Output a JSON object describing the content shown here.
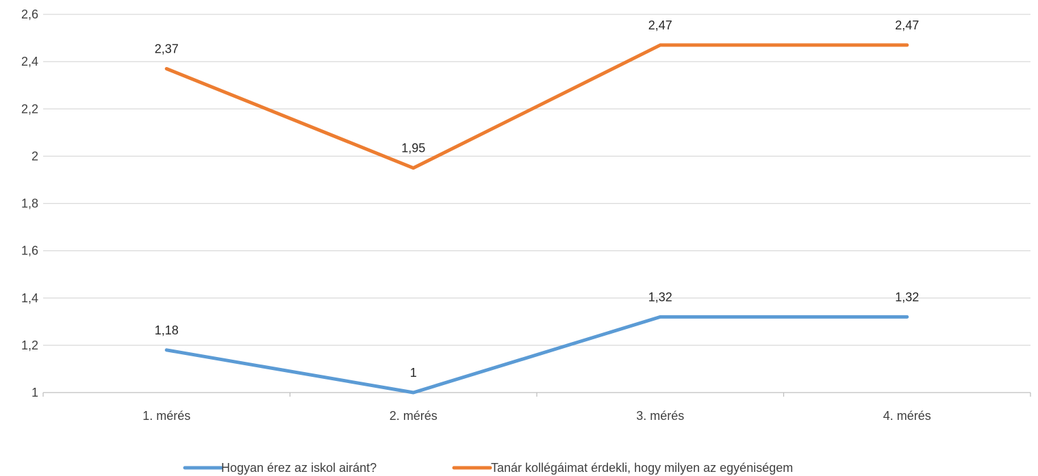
{
  "chart_data": {
    "type": "line",
    "categories": [
      "1. mérés",
      "2. mérés",
      "3. mérés",
      "4. mérés"
    ],
    "ylim": [
      1,
      2.6
    ],
    "yticks": [
      1,
      1.2,
      1.4,
      1.6,
      1.8,
      2,
      2.2,
      2.4,
      2.6
    ],
    "ytick_labels": [
      "1",
      "1,2",
      "1,4",
      "1,6",
      "1,8",
      "2",
      "2,2",
      "2,4",
      "2,6"
    ],
    "grid": true,
    "legend_position": "bottom",
    "series": [
      {
        "name": "Hogyan érez az iskol airánt?",
        "color": "#5b9bd5",
        "values": [
          1.18,
          1,
          1.32,
          1.32
        ],
        "labels": [
          "1,18",
          "1",
          "1,32",
          "1,32"
        ]
      },
      {
        "name": "Tanár kollégáimat érdekli, hogy milyen az egyéniségem",
        "color": "#ed7d31",
        "values": [
          2.37,
          1.95,
          2.47,
          2.47
        ],
        "labels": [
          "2,37",
          "1,95",
          "2,47",
          "2,47"
        ]
      }
    ]
  }
}
